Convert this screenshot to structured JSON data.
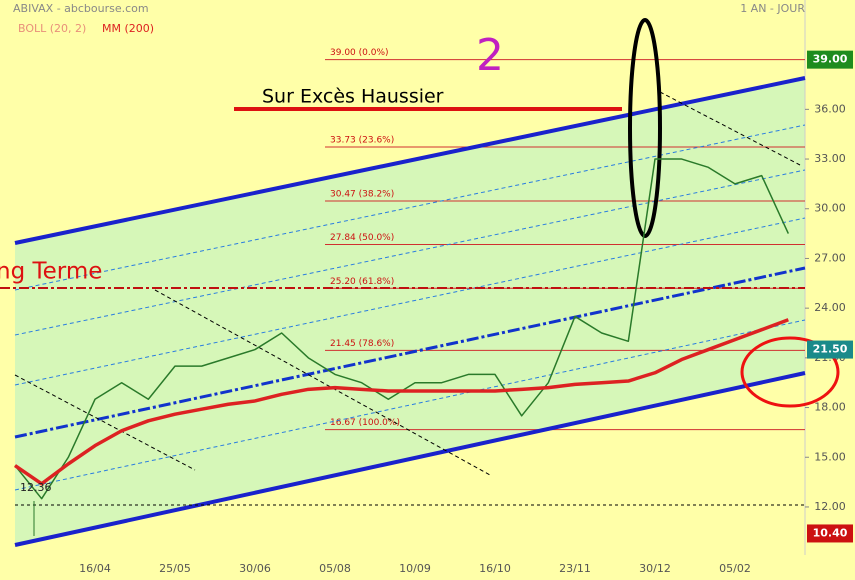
{
  "chart_data": {
    "type": "line",
    "title": "ABIVAX - abcbourse.com",
    "subtitle": "1 AN - JOUR",
    "bollinger_label": "BOLL (20, 2)",
    "categories": [
      null,
      null,
      null,
      "16/04",
      null,
      null,
      "25/05",
      null,
      null,
      "30/06",
      null,
      null,
      "05/08",
      null,
      null,
      "10/09",
      null,
      null,
      "16/10",
      null,
      null,
      "23/11",
      null,
      null,
      "30/12",
      null,
      null,
      "05/02",
      null,
      null
    ],
    "series": [
      {
        "color": "#2a7a2a",
        "values": [
          14.5,
          12.5,
          15,
          18.5,
          19.5,
          18.5,
          20.5,
          20.5,
          21,
          21.5,
          22.5,
          21,
          20,
          19.5,
          18.5,
          19.5,
          19.5,
          20,
          20,
          17.5,
          19.5,
          23.5,
          22.5,
          22,
          33,
          33,
          32.5,
          31.5,
          32,
          28.5
        ]
      },
      {
        "name": "MM (200)",
        "color": "#dd2222",
        "values": [
          14.5,
          13.4,
          14.6,
          15.7,
          16.6,
          17.2,
          17.6,
          17.9,
          18.2,
          18.4,
          18.8,
          19.1,
          19.2,
          19.1,
          19.0,
          19.0,
          19.0,
          19.0,
          19.0,
          19.1,
          19.2,
          19.4,
          19.5,
          19.6,
          20.1,
          20.9,
          21.5,
          22.1,
          22.7,
          23.3
        ]
      }
    ],
    "ylim": [
      9.1,
      42.6
    ],
    "yticks": [
      {
        "value": 12,
        "label": "12.00"
      },
      {
        "value": 15,
        "label": "15.00"
      },
      {
        "value": 18,
        "label": "18.00"
      },
      {
        "value": 21,
        "label": "21.00"
      },
      {
        "value": 24,
        "label": "24.00"
      },
      {
        "value": 27,
        "label": "27.00"
      },
      {
        "value": 30,
        "label": "30.00"
      },
      {
        "value": 33,
        "label": "33.00"
      },
      {
        "value": 36,
        "label": "36.00"
      }
    ],
    "fib_levels": [
      {
        "value": 39.0,
        "label": "39.00  (0.0%)"
      },
      {
        "value": 33.73,
        "label": "33.73  (23.6%)"
      },
      {
        "value": 30.47,
        "label": "30.47  (38.2%)"
      },
      {
        "value": 27.84,
        "label": "27.84  (50.0%)"
      },
      {
        "value": 25.2,
        "label": "25.20  (61.8%)"
      },
      {
        "value": 21.45,
        "label": "21.45  (78.6%)"
      },
      {
        "value": 16.67,
        "label": "16.67  (100.0%)"
      }
    ],
    "price_markers": [
      {
        "value": 39.0,
        "label": "39.00",
        "color": "#1e8c1e"
      },
      {
        "value": 21.5,
        "label": "21.50",
        "color": "#1a8a8a"
      },
      {
        "value": 10.4,
        "label": "10.40",
        "color": "#cc1111"
      }
    ],
    "low_label": {
      "value": 12.36,
      "label": "12.36"
    },
    "annotations": [
      "2",
      "Sur Excès Haussier",
      "ng Terme"
    ]
  }
}
